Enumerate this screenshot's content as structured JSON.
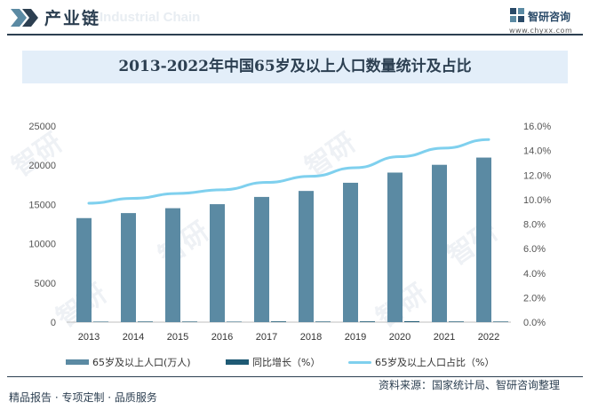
{
  "header": {
    "title": "产业链",
    "watermark": "Industrial Chain"
  },
  "brand": {
    "name": "智研咨询",
    "url": "www.chyxx.com"
  },
  "watermark_text": "智研",
  "chart_data": {
    "type": "bar",
    "title": "2013-2022年中国65岁及以上人口数量统计及占比",
    "categories": [
      "2013",
      "2014",
      "2015",
      "2016",
      "2017",
      "2018",
      "2019",
      "2020",
      "2021",
      "2022"
    ],
    "series": [
      {
        "name": "65岁及以上人口(万人)",
        "type": "bar",
        "axis": "left",
        "color": "#5b8aa3",
        "values": [
          13262,
          13902,
          14524,
          15037,
          15961,
          16724,
          17767,
          19064,
          20056,
          20978
        ]
      },
      {
        "name": "同比增长（%）",
        "type": "bar",
        "axis": "right",
        "color": "#1f5a74",
        "values": [
          0.0,
          0.048,
          0.045,
          0.035,
          0.061,
          0.048,
          0.062,
          0.073,
          0.052,
          0.046
        ]
      },
      {
        "name": "65岁及以上人口占比（%）",
        "type": "line",
        "axis": "right",
        "color": "#7fd0ee",
        "values": [
          9.7,
          10.1,
          10.5,
          10.8,
          11.4,
          11.9,
          12.6,
          13.5,
          14.2,
          14.9
        ]
      }
    ],
    "yleft": {
      "min": 0,
      "max": 25000,
      "ticks": [
        "0",
        "5000",
        "10000",
        "15000",
        "20000",
        "25000"
      ]
    },
    "yright": {
      "min": 0,
      "max": 16,
      "ticks": [
        "0.0%",
        "2.0%",
        "4.0%",
        "6.0%",
        "8.0%",
        "10.0%",
        "12.0%",
        "14.0%",
        "16.0%"
      ]
    },
    "legend_position": "bottom",
    "grid": false
  },
  "footer": {
    "left": "精品报告 · 专项定制 · 品质服务",
    "right": "资料来源：国家统计局、智研咨询整理"
  }
}
